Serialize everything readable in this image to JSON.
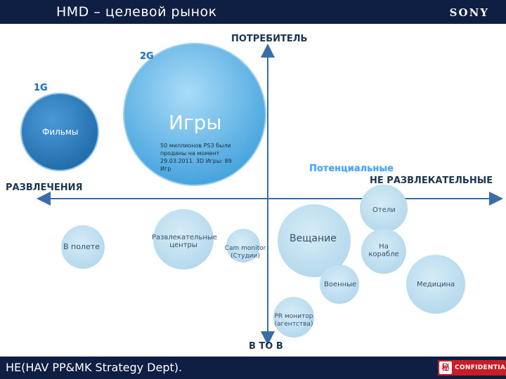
{
  "header": {
    "title": "HMD – целевой рынок",
    "logo": "SONY"
  },
  "axes": {
    "top": "ПОТРЕБИТЕЛЬ",
    "bottom": "В ТО В",
    "left": "РАЗВЛЕЧЕНИЯ",
    "right": "НЕ РАЗВЛЕКАТЕЛЬНЫЕ"
  },
  "generations": {
    "first": "1G",
    "second": "2G"
  },
  "potential_label": "Потенциальные",
  "bubbles": {
    "films": "Фильмы",
    "games": "Игры",
    "games_note": "50 миллионов PS3 были проданы на момент 29.03.2011. 3D Игры: 89 Игр",
    "field": "В полете",
    "entertainment": "Развлекательные центры",
    "cam_monitor": "Cam monitor (Студии)",
    "broadcast": "Вещание",
    "hotels": "Отели",
    "onboard": "На корабле",
    "military": "Военные",
    "medicine": "Медицина",
    "pr_monitor": "PR монитор (агентства)"
  },
  "colors": {
    "header_bg": "#0f1f44",
    "bubble_light": "#bfe0f0",
    "films_bubble": "#2f86c5",
    "games_bubble": "#5fb6e8",
    "axis": "#3a6ea5",
    "confidential": "#c81d25"
  },
  "footer": {
    "text": "HE(HAV PP&MK Strategy Dept).",
    "confidential": "CONFIDENTIAL",
    "confidential_mark": "秘"
  }
}
